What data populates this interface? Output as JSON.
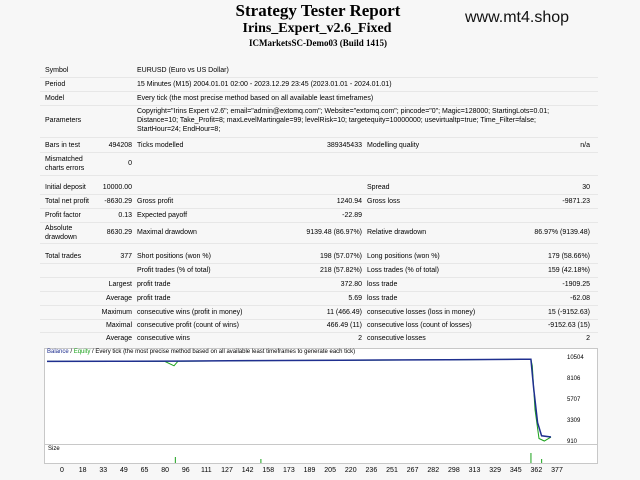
{
  "header": {
    "title": "Strategy Tester Report",
    "expert": "Irins_Expert_v2.6_Fixed",
    "server": "ICMarketsSC-Demo03 (Build 1415)",
    "watermark": "www.mt4.shop"
  },
  "settings": {
    "symbol_label": "Symbol",
    "symbol_value": "EURUSD (Euro vs US Dollar)",
    "period_label": "Period",
    "period_value": "15 Minutes (M15) 2004.01.01 02:00 - 2023.12.29 23:45 (2023.01.01 - 2024.01.01)",
    "model_label": "Model",
    "model_value": "Every tick (the most precise method based on all available least timeframes)",
    "parameters_label": "Parameters",
    "parameters_line1": "Copyright=\"Irins Expert v2.6\"; email=\"admin@extomq.com\"; Website=\"extomq.com\"; pincode=\"0\"; Magic=128000; StartingLots=0.01;",
    "parameters_line2": "Distance=10; Take_Profit=8; maxLevelMartingale=99; levelRisk=10; targetequity=10000000; usevirtualtp=true; Time_Filter=false;",
    "parameters_line3": "StartHour=24; EndHour=8;"
  },
  "stats": {
    "bars_label": "Bars in test",
    "bars_value": "494208",
    "ticks_label": "Ticks modelled",
    "ticks_value": "389345433",
    "quality_label": "Modelling quality",
    "quality_value": "n/a",
    "mismatch_label1": "Mismatched",
    "mismatch_label2": "charts errors",
    "mismatch_value": "0",
    "deposit_label": "Initial deposit",
    "deposit_value": "10000.00",
    "spread_label": "Spread",
    "spread_value": "30",
    "net_label": "Total net profit",
    "net_value": "-8630.29",
    "gp_label": "Gross profit",
    "gp_value": "1240.94",
    "gl_label": "Gross loss",
    "gl_value": "-9871.23",
    "pf_label": "Profit factor",
    "pf_value": "0.13",
    "ep_label": "Expected payoff",
    "ep_value": "-22.89",
    "abs_label1": "Absolute",
    "abs_label2": "drawdown",
    "abs_value": "8630.29",
    "maxdd_label": "Maximal drawdown",
    "maxdd_value": "9139.48 (86.97%)",
    "reldd_label": "Relative drawdown",
    "reldd_value": "86.97% (9139.48)",
    "trades_label": "Total trades",
    "trades_value": "377",
    "short_label": "Short positions (won %)",
    "short_value": "198 (57.07%)",
    "long_label": "Long positions (won %)",
    "long_value": "179 (58.66%)",
    "ptrades_label": "Profit trades (% of total)",
    "ptrades_value": "218 (57.82%)",
    "ltrades_label": "Loss trades (% of total)",
    "ltrades_value": "159 (42.18%)",
    "largest_label": "Largest",
    "average_label": "Average",
    "maximum_label": "Maximum",
    "maximal_label": "Maximal",
    "lp_label": "profit trade",
    "lp_value": "372.80",
    "ll_label": "loss trade",
    "ll_value": "-1909.25",
    "ap_label": "profit trade",
    "ap_value": "5.69",
    "al_label": "loss trade",
    "al_value": "-62.08",
    "mcw_label": "consecutive wins (profit in money)",
    "mcw_value": "11 (466.49)",
    "mcl_label": "consecutive losses (loss in money)",
    "mcl_value": "15 (-9152.63)",
    "mcp_label": "consecutive profit (count of wins)",
    "mcp_value": "466.49 (11)",
    "mcll_label": "consecutive loss (count of losses)",
    "mcll_value": "-9152.63 (15)",
    "acw_label": "consecutive wins",
    "acw_value": "2",
    "acl_label": "consecutive losses",
    "acl_value": "2"
  },
  "chart": {
    "legend_balance": "Balance",
    "legend_sep": " / ",
    "legend_equity": "Equity",
    "legend_rest": " / Every tick (the most precise method based on all available least timeframes to generate each tick)",
    "size_label": "Size",
    "balance_color": "#1f2f8f",
    "equity_color": "#19a119"
  },
  "chart_data": {
    "type": "line",
    "yticks": [
      "10504",
      "8106",
      "5707",
      "3309",
      "910"
    ],
    "xticks": [
      "0",
      "18",
      "33",
      "49",
      "65",
      "80",
      "96",
      "111",
      "127",
      "142",
      "158",
      "173",
      "189",
      "205",
      "220",
      "236",
      "251",
      "267",
      "282",
      "298",
      "313",
      "329",
      "345",
      "362",
      "377"
    ],
    "series": [
      {
        "name": "Balance",
        "values": [
          [
            0,
            10000
          ],
          [
            50,
            10015
          ],
          [
            96,
            10040
          ],
          [
            150,
            10090
          ],
          [
            220,
            10140
          ],
          [
            300,
            10200
          ],
          [
            355,
            10240
          ],
          [
            362,
            10250
          ],
          [
            364,
            7000
          ],
          [
            367,
            3000
          ],
          [
            370,
            1500
          ],
          [
            377,
            1370
          ]
        ]
      },
      {
        "name": "Equity",
        "values": [
          [
            0,
            10000
          ],
          [
            88,
            10010
          ],
          [
            95,
            9500
          ],
          [
            98,
            10030
          ],
          [
            150,
            10080
          ],
          [
            220,
            10130
          ],
          [
            300,
            10190
          ],
          [
            362,
            10240
          ],
          [
            363,
            9500
          ],
          [
            365,
            4500
          ],
          [
            368,
            1200
          ],
          [
            372,
            910
          ],
          [
            377,
            1360
          ]
        ]
      }
    ],
    "ylim": [
      910,
      10504
    ],
    "xlim": [
      0,
      377
    ]
  }
}
